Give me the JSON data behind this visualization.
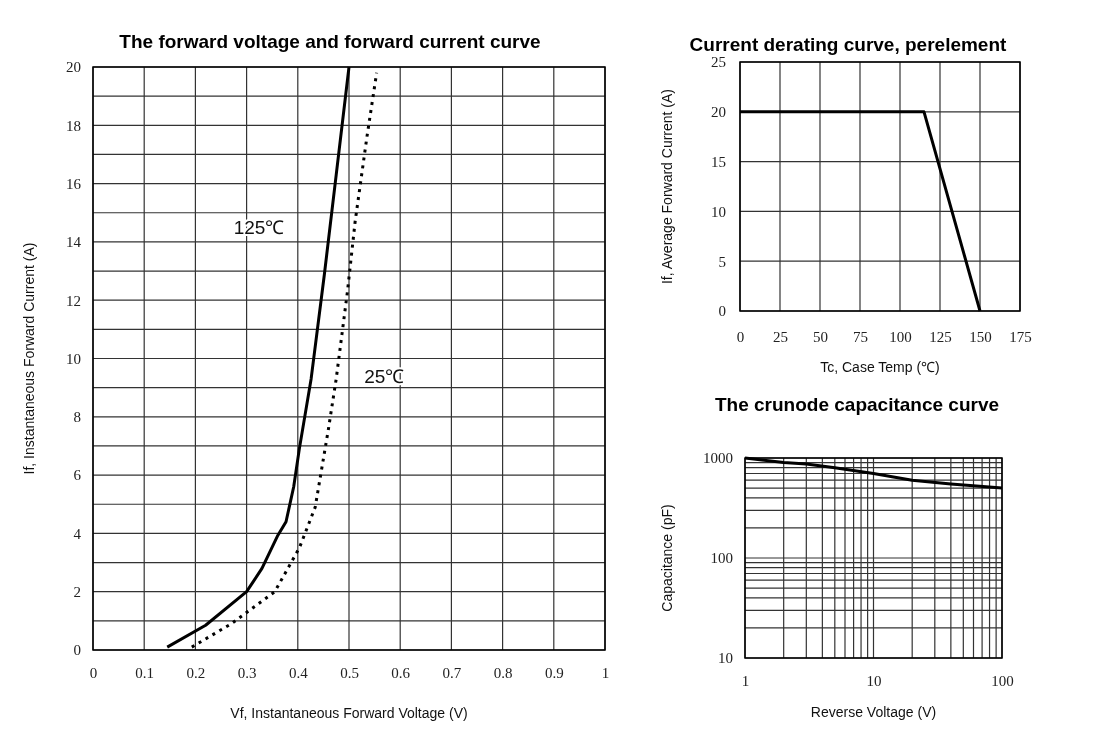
{
  "chart_data": [
    {
      "type": "line",
      "title": "The forward voltage and forward current curve",
      "xlabel": "Vf, Instantaneous Forward Voltage (V)",
      "ylabel": "If, Instantaneous Forward Current (A)",
      "xlim": [
        0,
        1
      ],
      "xticks": [
        0,
        0.1,
        0.2,
        0.3,
        0.4,
        0.5,
        0.6,
        0.7,
        0.8,
        0.9,
        1
      ],
      "ylim": [
        0,
        20
      ],
      "yticks": [
        0,
        {
          "value": 1,
          "label": null
        },
        2,
        {
          "value": 3,
          "label": null
        },
        4,
        {
          "value": 5,
          "label": null
        },
        6,
        {
          "value": 7,
          "label": null
        },
        8,
        {
          "value": 9,
          "label": null
        },
        10,
        {
          "value": 11,
          "label": null
        },
        12,
        {
          "value": 13,
          "label": null
        },
        14,
        {
          "value": 15,
          "label": null
        },
        16,
        {
          "value": 17,
          "label": null
        },
        18,
        {
          "value": 19,
          "label": null
        },
        20
      ],
      "grid": true,
      "marker": "none",
      "series": [
        {
          "name": "125℃",
          "color": "#000000",
          "line_style": "solid",
          "x": [
            0.145,
            0.22,
            0.3,
            0.33,
            0.36,
            0.377,
            0.392,
            0.403,
            0.426,
            0.452,
            0.475,
            0.5
          ],
          "values": [
            0.1,
            0.85,
            2,
            2.8,
            3.9,
            4.4,
            5.6,
            6.9,
            9.3,
            12.9,
            16.3,
            20
          ]
        },
        {
          "name": "25℃",
          "color": "#000000",
          "line_style": "dotted",
          "x": [
            0.193,
            0.27,
            0.355,
            0.403,
            0.434,
            0.46,
            0.475,
            0.497,
            0.512,
            0.535,
            0.554
          ],
          "values": [
            0.1,
            0.9,
            2,
            3.5,
            4.9,
            7.6,
            9.3,
            12.3,
            14.7,
            17.6,
            19.8
          ]
        }
      ]
    },
    {
      "type": "line",
      "title": "Current derating curve, perelement",
      "xlabel": "Tc, Case Temp (℃)",
      "ylabel": "If, Average Forward Current (A)",
      "xlim": [
        0,
        175
      ],
      "xticks": [
        0,
        25,
        50,
        75,
        100,
        125,
        150,
        175
      ],
      "ylim": [
        0,
        25
      ],
      "yticks": [
        0,
        5,
        10,
        15,
        20,
        25
      ],
      "grid": true,
      "marker": "none",
      "series": [
        {
          "color": "#000000",
          "line_style": "solid",
          "x": [
            0,
            115,
            150
          ],
          "values": [
            20,
            20,
            0
          ]
        }
      ]
    },
    {
      "type": "line",
      "title": "The crunode capacitance curve",
      "xlabel": "Reverse Voltage (V)",
      "ylabel": "Capacitance (pF)",
      "log": "xy",
      "xlim": [
        1,
        100
      ],
      "xticks": [
        1,
        {
          "value": 2,
          "label": null
        },
        {
          "value": 3,
          "label": null
        },
        {
          "value": 4,
          "label": null
        },
        {
          "value": 5,
          "label": null
        },
        {
          "value": 6,
          "label": null
        },
        {
          "value": 7,
          "label": null
        },
        {
          "value": 8,
          "label": null
        },
        {
          "value": 9,
          "label": null
        },
        10,
        {
          "value": 20,
          "label": null
        },
        {
          "value": 30,
          "label": null
        },
        {
          "value": 40,
          "label": null
        },
        {
          "value": 50,
          "label": null
        },
        {
          "value": 60,
          "label": null
        },
        {
          "value": 70,
          "label": null
        },
        {
          "value": 80,
          "label": null
        },
        {
          "value": 90,
          "label": null
        },
        100
      ],
      "ylim": [
        10,
        1000
      ],
      "yticks": [
        10,
        {
          "value": 20,
          "label": null
        },
        {
          "value": 30,
          "label": null
        },
        {
          "value": 40,
          "label": null
        },
        {
          "value": 50,
          "label": null
        },
        {
          "value": 60,
          "label": null
        },
        {
          "value": 70,
          "label": null
        },
        {
          "value": 80,
          "label": null
        },
        {
          "value": 90,
          "label": null
        },
        100,
        {
          "value": 200,
          "label": null
        },
        {
          "value": 300,
          "label": null
        },
        {
          "value": 400,
          "label": null
        },
        {
          "value": 500,
          "label": null
        },
        {
          "value": 600,
          "label": null
        },
        {
          "value": 700,
          "label": null
        },
        {
          "value": 800,
          "label": null
        },
        {
          "value": 900,
          "label": null
        },
        1000
      ],
      "grid": true,
      "marker": "none",
      "series": [
        {
          "color": "#000000",
          "line_style": "solid",
          "x": [
            1,
            2,
            3,
            5,
            10,
            20,
            40,
            100
          ],
          "values": [
            1000,
            900,
            870,
            800,
            700,
            600,
            550,
            500
          ]
        }
      ]
    }
  ]
}
